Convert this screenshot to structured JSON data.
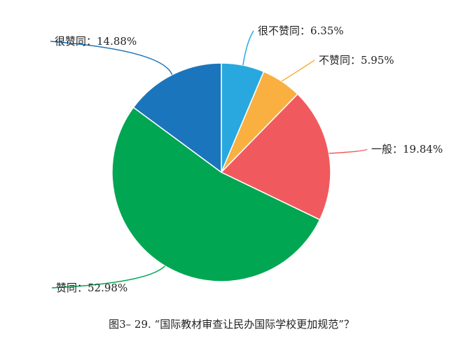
{
  "chart_data": {
    "type": "pie",
    "title": "图3– 29. “国际教材审查让民办国际学校更加规范”？",
    "slices": [
      {
        "label": "很不赞同",
        "value": 6.35,
        "display": "很不赞同：6.35%",
        "color": "#29a8e0"
      },
      {
        "label": "不赞同",
        "value": 5.95,
        "display": "不赞同：5.95%",
        "color": "#f9b040"
      },
      {
        "label": "一般",
        "value": 19.84,
        "display": "一般：19.84%",
        "color": "#f05a5e"
      },
      {
        "label": "赞同",
        "value": 52.98,
        "display": "赞同：52.98%",
        "color": "#00a651"
      },
      {
        "label": "很赞同",
        "value": 14.88,
        "display": "很赞同：14.88%",
        "color": "#1b75bc"
      }
    ],
    "start_angle": "12 o'clock",
    "direction": "clockwise",
    "legend": "none"
  }
}
